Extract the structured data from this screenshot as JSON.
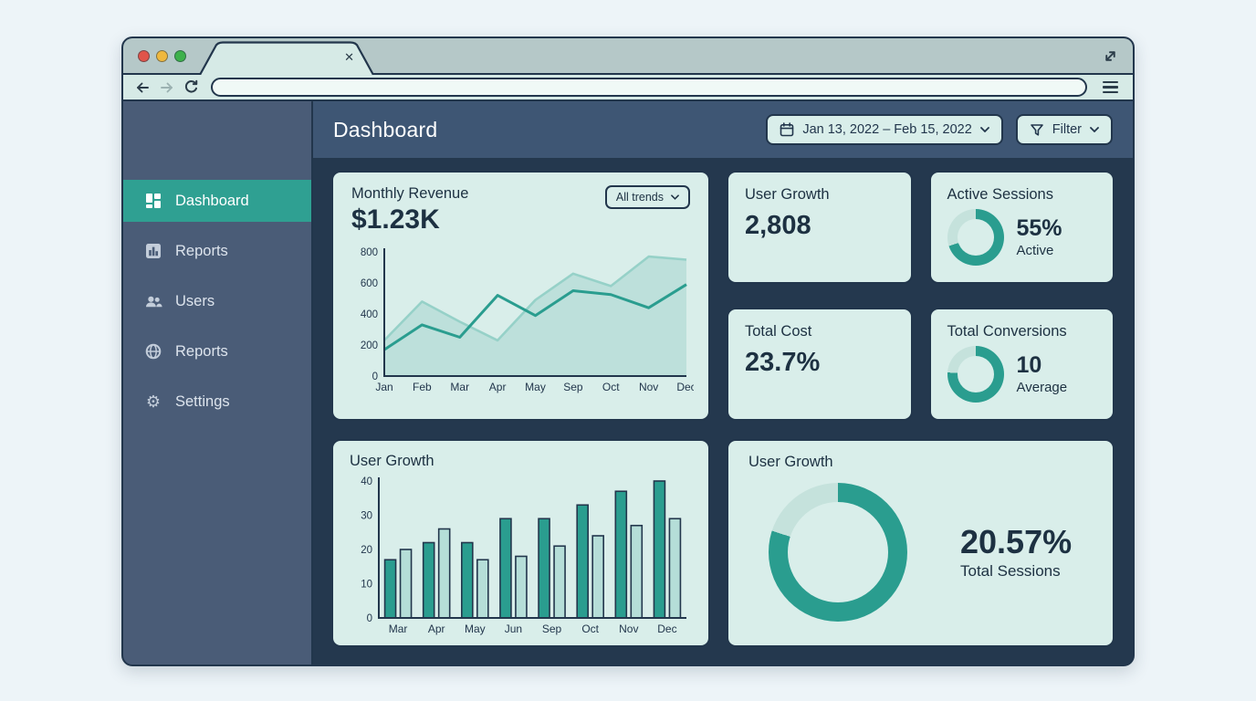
{
  "colors": {
    "accent_teal": "#2a9d8f",
    "teal_light": "#96d1c8",
    "bar_light_fill": "#b5ded8",
    "ring_track": "#c5e2dc",
    "dark_navy": "#22364c",
    "card_bg": "#d9eeea"
  },
  "browser": {
    "tab_close_glyph": "✕",
    "url_value": ""
  },
  "header": {
    "title": "Dashboard",
    "date_range": "Jan 13, 2022 – Feb 15, 2022",
    "filter_label": "Filter"
  },
  "sidebar": {
    "gear_glyph": "⚙",
    "items": [
      {
        "label": "Dashboard",
        "icon": "dashboard-grid-icon",
        "active": true
      },
      {
        "label": "Reports",
        "icon": "bar-chart-icon",
        "active": false
      },
      {
        "label": "Users",
        "icon": "users-icon",
        "active": false
      },
      {
        "label": "Reports",
        "icon": "globe-icon",
        "active": false
      },
      {
        "label": "Settings",
        "icon": "gear-icon",
        "active": false
      }
    ]
  },
  "cards": {
    "monthly_revenue": {
      "value": "$1.23K",
      "dropdown_label": "All trends"
    },
    "user_growth": {
      "title": "User Growth",
      "value": "2,808"
    },
    "total_cost": {
      "title": "Total Cost",
      "value": "23.7%"
    }
  },
  "chart_data": [
    {
      "type": "line",
      "title": "Monthly Revenue",
      "x": [
        "Jan",
        "Feb",
        "Mar",
        "Apr",
        "May",
        "Sep",
        "Oct",
        "Nov",
        "Dec"
      ],
      "series": [
        {
          "name": "trend-secondary",
          "style": "light-area",
          "values": [
            230,
            480,
            350,
            230,
            490,
            660,
            580,
            770,
            750
          ]
        },
        {
          "name": "trend-primary",
          "style": "dark",
          "values": [
            170,
            330,
            250,
            520,
            390,
            550,
            525,
            440,
            590
          ]
        }
      ],
      "ylim": [
        0,
        800
      ],
      "yticks": [
        0,
        200,
        400,
        600,
        800
      ],
      "grid": false,
      "legend": "none"
    },
    {
      "type": "bar",
      "title": "User Growth",
      "categories": [
        "Mar",
        "Apr",
        "May",
        "Jun",
        "Sep",
        "Oct",
        "Nov",
        "Dec"
      ],
      "series": [
        {
          "name": "series-dark",
          "values": [
            17,
            22,
            22,
            29,
            29,
            33,
            37,
            40
          ]
        },
        {
          "name": "series-light",
          "values": [
            20,
            26,
            17,
            18,
            21,
            24,
            27,
            29
          ]
        }
      ],
      "ylim": [
        0,
        40
      ],
      "yticks": [
        0,
        10,
        20,
        30,
        40
      ],
      "grid": false,
      "legend": "none"
    },
    {
      "type": "pie",
      "title": "Active Sessions",
      "label": "55%",
      "sublabel": "Active",
      "ring_percent": 70
    },
    {
      "type": "pie",
      "title": "Total Conversions",
      "label": "10",
      "sublabel": "Average",
      "ring_percent": 76
    },
    {
      "type": "pie",
      "title": "User Growth",
      "label": "20.57%",
      "sublabel": "Total Sessions",
      "ring_percent": 80
    }
  ]
}
